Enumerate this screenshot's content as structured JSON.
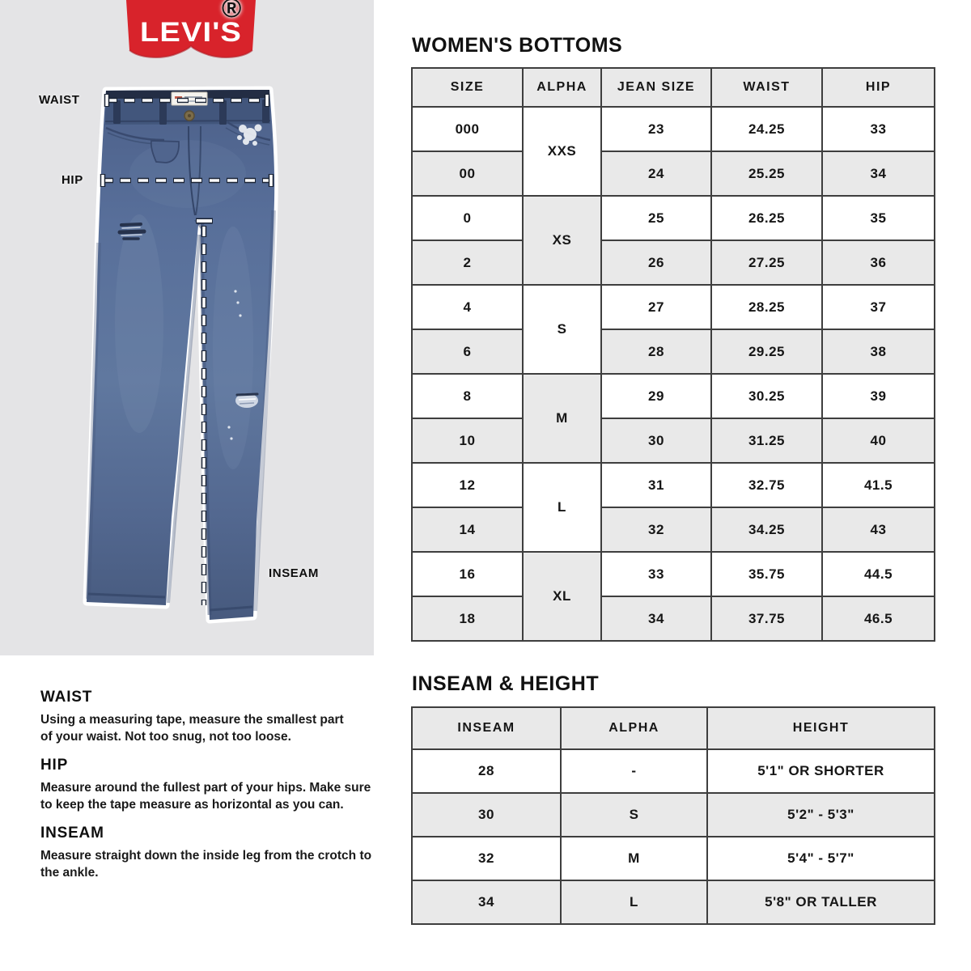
{
  "colors": {
    "panel_bg": "#e4e4e6",
    "brand_red": "#d8232b",
    "table_border": "#3e3e3e",
    "cell_shaded": "#e9e9e9",
    "denim_mid": "#5a7099",
    "denim_dark": "#2c3a58",
    "text": "#141414"
  },
  "logo": {
    "text": "LEVI'S",
    "registered_mark": "®"
  },
  "diagram": {
    "waist_label": "WAIST",
    "hip_label": "HIP",
    "inseam_label": "INSEAM"
  },
  "bottoms_section": {
    "title": "WOMEN'S BOTTOMS",
    "headers": [
      "SIZE",
      "ALPHA",
      "JEAN SIZE",
      "WAIST",
      "HIP"
    ],
    "groups": [
      {
        "alpha": "XXS",
        "rows": [
          [
            "000",
            "23",
            "24.25",
            "33"
          ],
          [
            "00",
            "24",
            "25.25",
            "34"
          ]
        ]
      },
      {
        "alpha": "XS",
        "rows": [
          [
            "0",
            "25",
            "26.25",
            "35"
          ],
          [
            "2",
            "26",
            "27.25",
            "36"
          ]
        ]
      },
      {
        "alpha": "S",
        "rows": [
          [
            "4",
            "27",
            "28.25",
            "37"
          ],
          [
            "6",
            "28",
            "29.25",
            "38"
          ]
        ]
      },
      {
        "alpha": "M",
        "rows": [
          [
            "8",
            "29",
            "30.25",
            "39"
          ],
          [
            "10",
            "30",
            "31.25",
            "40"
          ]
        ]
      },
      {
        "alpha": "L",
        "rows": [
          [
            "12",
            "31",
            "32.75",
            "41.5"
          ],
          [
            "14",
            "32",
            "34.25",
            "43"
          ]
        ]
      },
      {
        "alpha": "XL",
        "rows": [
          [
            "16",
            "33",
            "35.75",
            "44.5"
          ],
          [
            "18",
            "34",
            "37.75",
            "46.5"
          ]
        ]
      }
    ]
  },
  "inseam_section": {
    "title": "INSEAM & HEIGHT",
    "headers": [
      "INSEAM",
      "ALPHA",
      "HEIGHT"
    ],
    "rows": [
      [
        "28",
        "-",
        "5'1\" OR SHORTER"
      ],
      [
        "30",
        "S",
        "5'2\" - 5'3\""
      ],
      [
        "32",
        "M",
        "5'4\" - 5'7\""
      ],
      [
        "34",
        "L",
        "5'8\" OR TALLER"
      ]
    ]
  },
  "guides": [
    {
      "heading": "WAIST",
      "lines": [
        "Using a measuring tape, measure the smallest part",
        "of your waist. Not too snug, not too loose."
      ]
    },
    {
      "heading": "HIP",
      "lines": [
        "Measure around the fullest part of your hips. Make sure",
        "to keep the tape measure as horizontal as you can."
      ]
    },
    {
      "heading": "INSEAM",
      "lines": [
        "Measure straight down the inside leg from the crotch to",
        "the ankle."
      ]
    }
  ]
}
